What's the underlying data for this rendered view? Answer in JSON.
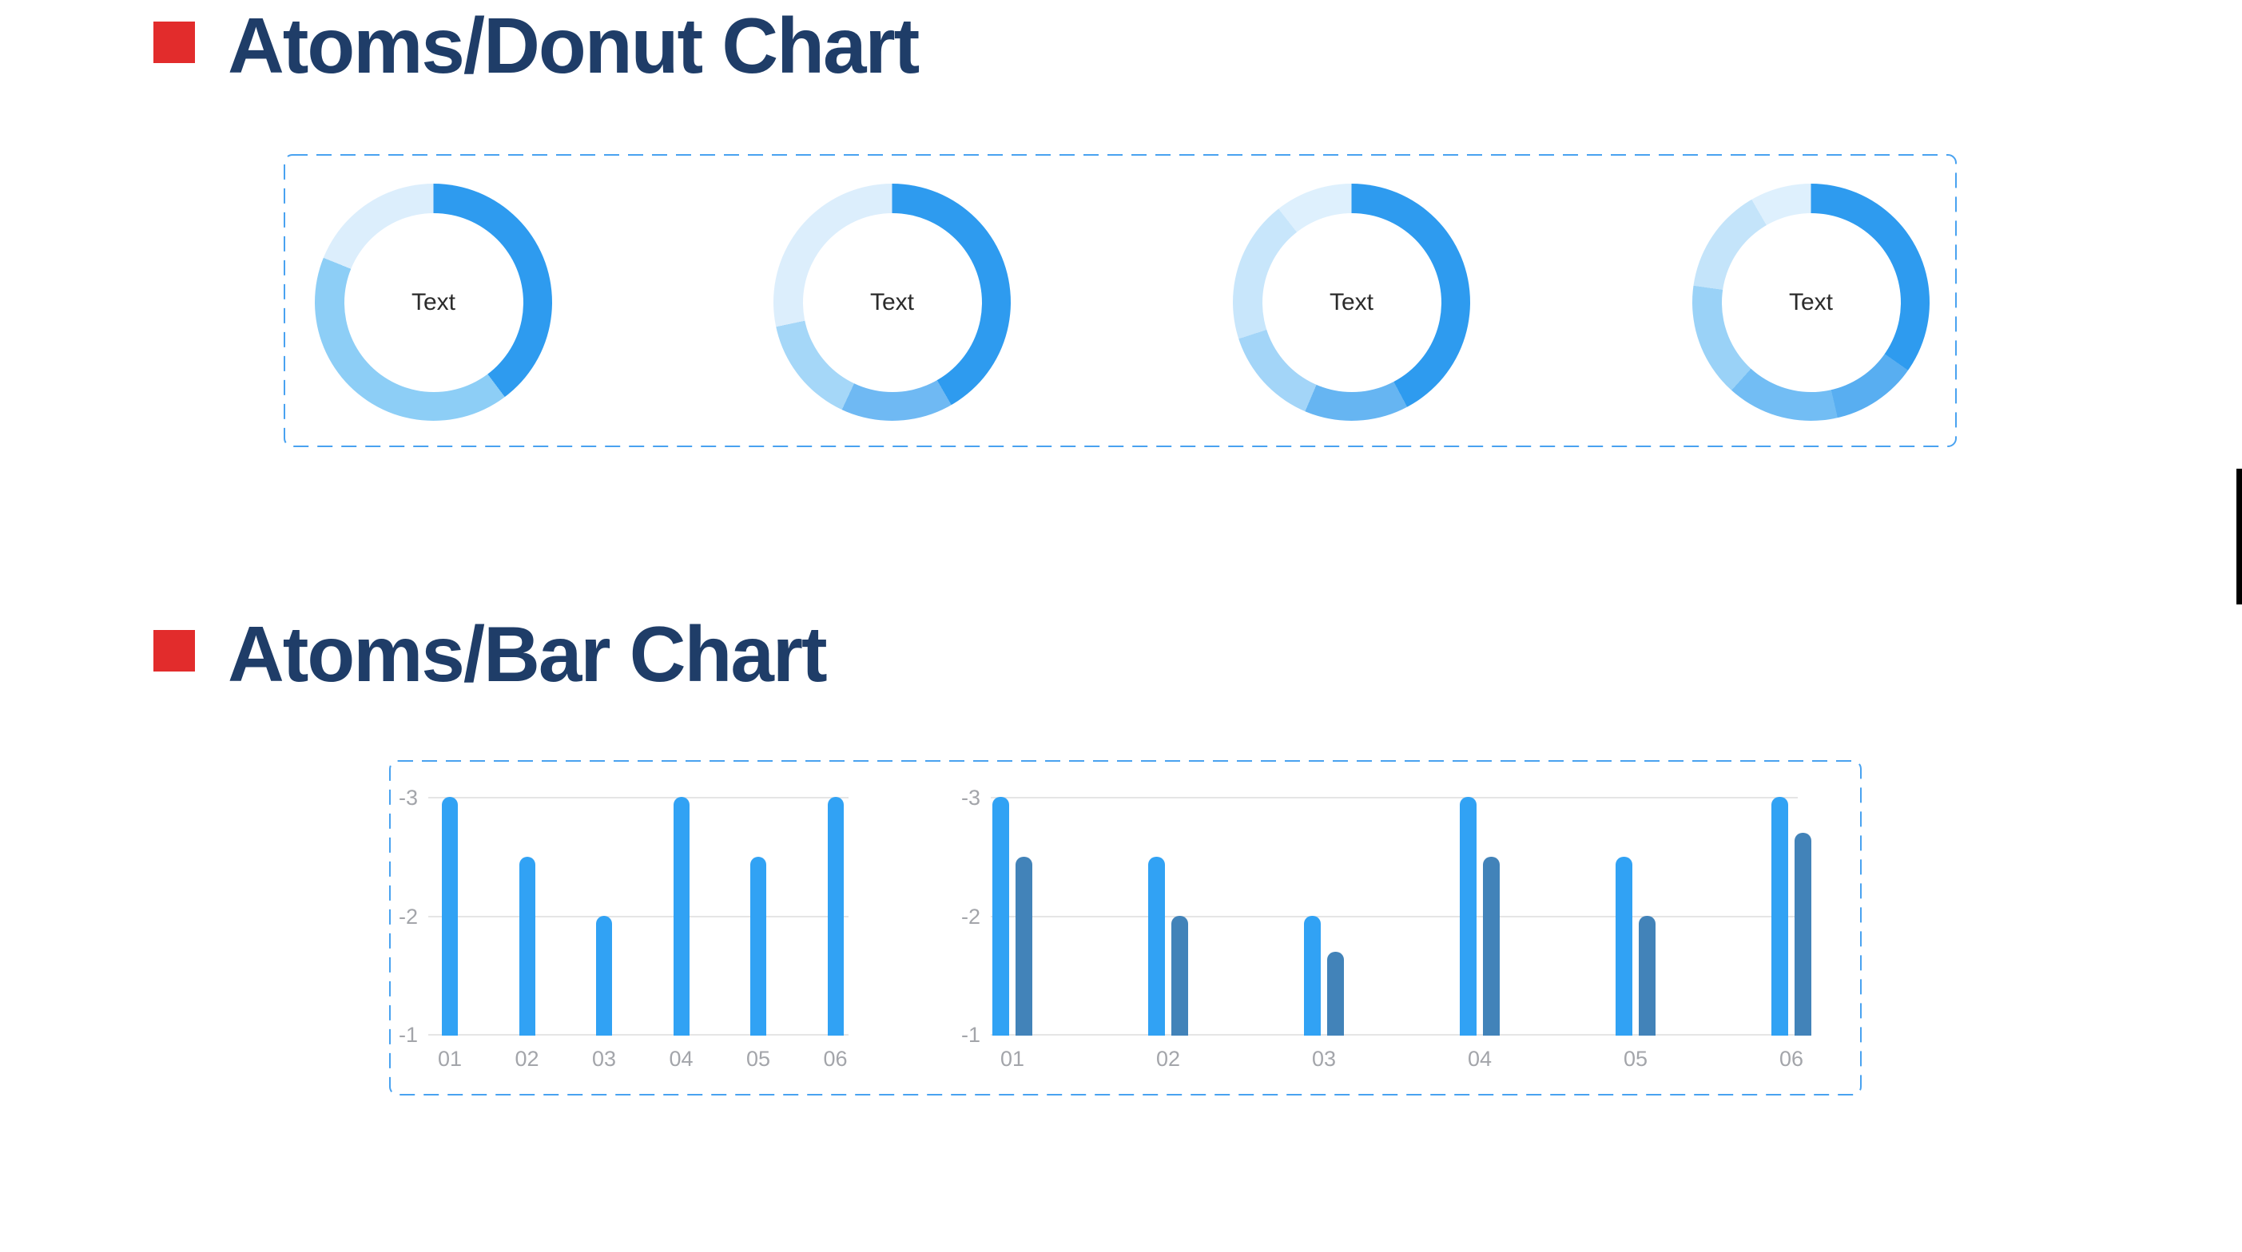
{
  "headings": [
    {
      "text": "Atoms/Donut Chart"
    },
    {
      "text": "Atoms/Bar Chart"
    }
  ],
  "colors": {
    "heading_text": "#1F3D68",
    "heading_bullet": "#E22C2C",
    "panel_border": "#49A2F0",
    "grid": "#E5E5E5",
    "axis_text": "#A3A5AA",
    "donut_center_text": "#2B2B2B",
    "donut_primary": "#2E9BEF",
    "bar_primary": "#31A2F4",
    "bar_secondary": "#4283B9",
    "scrollbar": "#000000"
  },
  "chart_data": [
    {
      "type": "pie",
      "variant": "donut",
      "center_label": "Text",
      "segments": [
        {
          "color": "#2E9BEF",
          "deg": 143
        },
        {
          "color": "#8DCEF6",
          "deg": 149
        },
        {
          "color": "#DCEEFC",
          "deg": 68
        }
      ]
    },
    {
      "type": "pie",
      "variant": "donut",
      "center_label": "Text",
      "segments": [
        {
          "color": "#2E9BEF",
          "deg": 150
        },
        {
          "color": "#6FB9F3",
          "deg": 55
        },
        {
          "color": "#A5D7F8",
          "deg": 53
        },
        {
          "color": "#DCEEFC",
          "deg": 102
        }
      ]
    },
    {
      "type": "pie",
      "variant": "donut",
      "center_label": "Text",
      "segments": [
        {
          "color": "#2E9BEF",
          "deg": 152
        },
        {
          "color": "#66B5F2",
          "deg": 51
        },
        {
          "color": "#A3D5F8",
          "deg": 49
        },
        {
          "color": "#C8E6FB",
          "deg": 70
        },
        {
          "color": "#DEF0FD",
          "deg": 38
        }
      ]
    },
    {
      "type": "pie",
      "variant": "donut",
      "center_label": "Text",
      "segments": [
        {
          "color": "#2E9BEF",
          "deg": 125
        },
        {
          "color": "#58AEF1",
          "deg": 42
        },
        {
          "color": "#72BDF4",
          "deg": 55
        },
        {
          "color": "#9AD2F7",
          "deg": 56
        },
        {
          "color": "#C4E4FA",
          "deg": 52
        },
        {
          "color": "#DEF0FD",
          "deg": 30
        }
      ]
    },
    {
      "type": "bar",
      "categories": [
        "01",
        "02",
        "03",
        "04",
        "05",
        "06"
      ],
      "yticks": [
        "-3",
        "-2",
        "-1"
      ],
      "ylim": [
        -1,
        -3
      ],
      "grid": true,
      "series": [
        {
          "name": "primary",
          "color": "#31A2F4",
          "values": [
            -3,
            -2.5,
            -2,
            -3,
            -2.5,
            -3
          ]
        }
      ]
    },
    {
      "type": "bar",
      "categories": [
        "01",
        "02",
        "03",
        "04",
        "05",
        "06"
      ],
      "yticks": [
        "-3",
        "-2",
        "-1"
      ],
      "ylim": [
        -1,
        -3
      ],
      "grid": true,
      "series": [
        {
          "name": "primary",
          "color": "#31A2F4",
          "values": [
            -3,
            -2.5,
            -2,
            -3,
            -2.5,
            -3
          ]
        },
        {
          "name": "secondary",
          "color": "#4283B9",
          "values": [
            -2.5,
            -2,
            -1.7,
            -2.5,
            -2,
            -2.7
          ]
        }
      ]
    }
  ]
}
